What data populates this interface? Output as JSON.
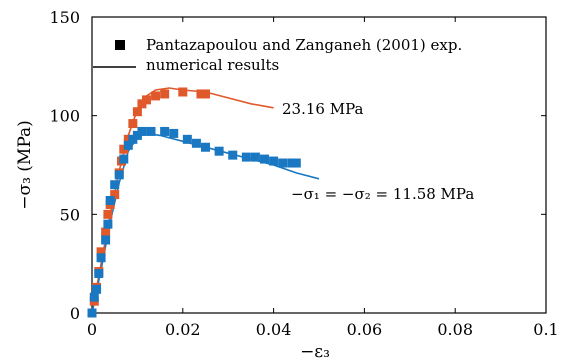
{
  "chart_data": {
    "type": "scatter",
    "title": "",
    "xlabel": "−ε₃",
    "ylabel": "−σ₃ (MPa)",
    "xlim": [
      0,
      0.1
    ],
    "ylim": [
      0,
      150
    ],
    "xticks": [
      0,
      0.02,
      0.04,
      0.06,
      0.08,
      0.1
    ],
    "xtick_labels": [
      "0",
      "0.02",
      "0.04",
      "0.06",
      "0.08",
      "0.1"
    ],
    "yticks": [
      0,
      50,
      100,
      150
    ],
    "ytick_labels": [
      "0",
      "50",
      "100",
      "150"
    ],
    "grid": false,
    "legend": {
      "placement": "top-left",
      "entries": [
        {
          "label": "Pantazapoulou and Zanganeh (2001) exp.",
          "marker": "square",
          "color": "#000000"
        },
        {
          "label": "numerical results",
          "marker": "line",
          "color": "#000000"
        }
      ]
    },
    "annotations": [
      {
        "text": "23.16 MPa",
        "x": 0.041,
        "y": 102
      },
      {
        "text": "−σ₁ = −σ₂ = 11.58 MPa",
        "x": 0.04,
        "y": 70
      }
    ],
    "colors": {
      "series_a": "#e0592a",
      "series_b": "#1a78c2"
    },
    "series": [
      {
        "kind": "experimental",
        "color": "#e0592a",
        "points": [
          [
            0,
            0
          ],
          [
            0.0005,
            6
          ],
          [
            0.001,
            13
          ],
          [
            0.0015,
            21
          ],
          [
            0.002,
            31
          ],
          [
            0.003,
            41
          ],
          [
            0.0035,
            50
          ],
          [
            0.004,
            55
          ],
          [
            0.005,
            60
          ],
          [
            0.006,
            71
          ],
          [
            0.0065,
            77
          ],
          [
            0.007,
            83
          ],
          [
            0.008,
            88
          ],
          [
            0.009,
            96
          ],
          [
            0.01,
            102
          ],
          [
            0.011,
            106
          ],
          [
            0.012,
            108
          ],
          [
            0.014,
            110
          ],
          [
            0.016,
            111
          ],
          [
            0.02,
            112
          ],
          [
            0.024,
            111
          ],
          [
            0.025,
            111
          ]
        ]
      },
      {
        "kind": "numerical",
        "color": "#e0592a",
        "points": [
          [
            0,
            0
          ],
          [
            0.002,
            25
          ],
          [
            0.004,
            50
          ],
          [
            0.006,
            72
          ],
          [
            0.008,
            90
          ],
          [
            0.01,
            103
          ],
          [
            0.012,
            110
          ],
          [
            0.014,
            113
          ],
          [
            0.017,
            114
          ],
          [
            0.02,
            113
          ],
          [
            0.025,
            112
          ],
          [
            0.03,
            109
          ],
          [
            0.035,
            106
          ],
          [
            0.04,
            104
          ]
        ]
      },
      {
        "kind": "experimental",
        "color": "#1a78c2",
        "points": [
          [
            0,
            0
          ],
          [
            0.0005,
            8
          ],
          [
            0.001,
            12
          ],
          [
            0.0015,
            20
          ],
          [
            0.002,
            28
          ],
          [
            0.003,
            37
          ],
          [
            0.0035,
            45
          ],
          [
            0.004,
            57
          ],
          [
            0.005,
            65
          ],
          [
            0.006,
            70
          ],
          [
            0.007,
            78
          ],
          [
            0.008,
            85
          ],
          [
            0.009,
            88
          ],
          [
            0.01,
            90
          ],
          [
            0.011,
            92
          ],
          [
            0.013,
            92
          ],
          [
            0.016,
            92
          ],
          [
            0.018,
            91
          ],
          [
            0.021,
            88
          ],
          [
            0.023,
            86
          ],
          [
            0.025,
            84
          ],
          [
            0.028,
            82
          ],
          [
            0.031,
            80
          ],
          [
            0.034,
            79
          ],
          [
            0.036,
            79
          ],
          [
            0.038,
            78
          ],
          [
            0.04,
            77
          ],
          [
            0.042,
            76
          ],
          [
            0.044,
            76
          ],
          [
            0.045,
            76
          ]
        ]
      },
      {
        "kind": "numerical",
        "color": "#1a78c2",
        "points": [
          [
            0,
            0
          ],
          [
            0.002,
            22
          ],
          [
            0.004,
            46
          ],
          [
            0.006,
            66
          ],
          [
            0.008,
            82
          ],
          [
            0.01,
            89
          ],
          [
            0.012,
            91
          ],
          [
            0.015,
            90
          ],
          [
            0.02,
            87
          ],
          [
            0.025,
            84
          ],
          [
            0.03,
            81
          ],
          [
            0.035,
            78
          ],
          [
            0.04,
            75
          ],
          [
            0.045,
            71
          ],
          [
            0.05,
            68
          ]
        ]
      }
    ]
  }
}
